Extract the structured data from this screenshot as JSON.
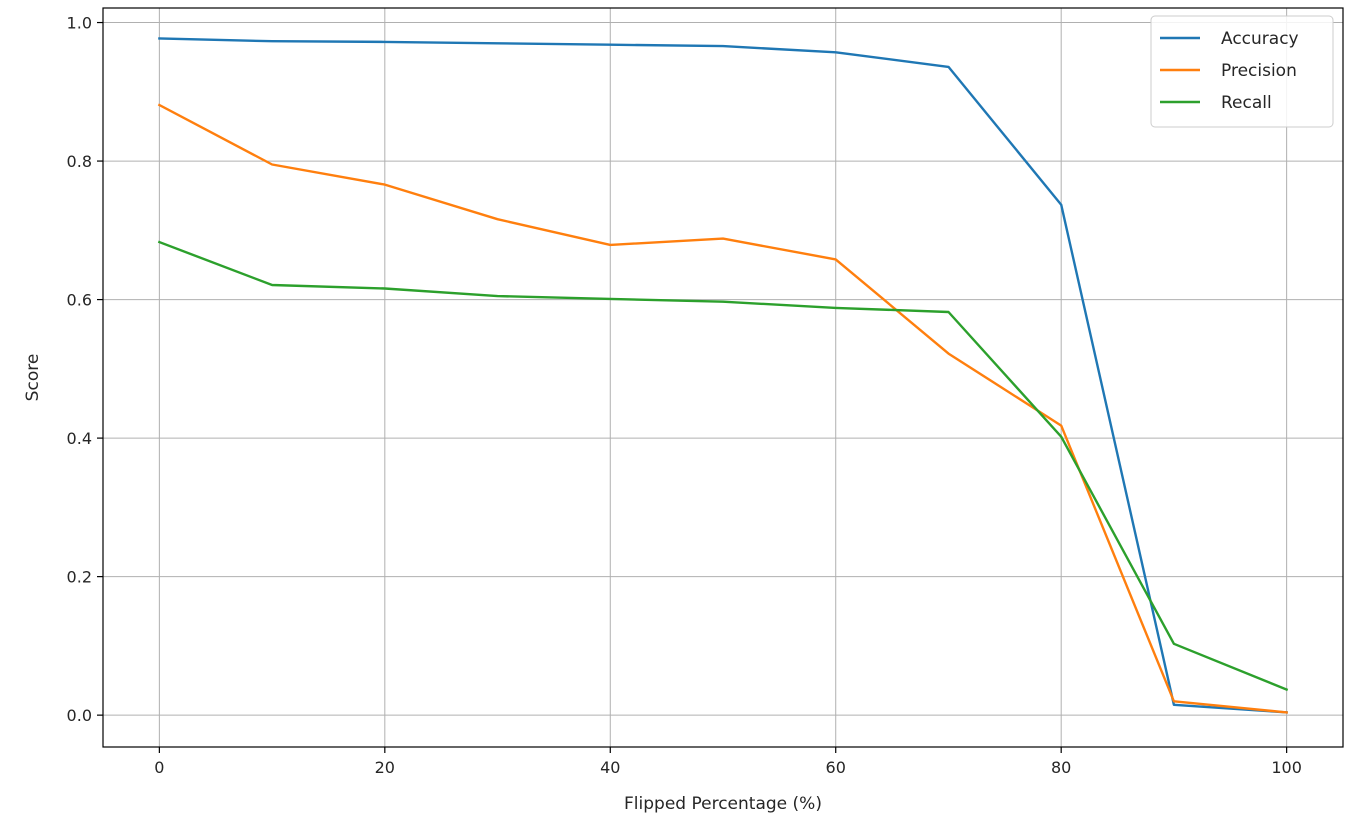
{
  "chart_data": {
    "type": "line",
    "title": "",
    "xlabel": "Flipped Percentage (%)",
    "ylabel": "Score",
    "x": [
      0,
      10,
      20,
      30,
      40,
      50,
      60,
      70,
      80,
      90,
      100
    ],
    "xlim": [
      -5,
      105
    ],
    "ylim": [
      -0.046,
      1.021
    ],
    "xticks": [
      0,
      20,
      40,
      60,
      80,
      100
    ],
    "xtick_labels": [
      "0",
      "20",
      "40",
      "60",
      "80",
      "100"
    ],
    "yticks": [
      0.0,
      0.2,
      0.4,
      0.6,
      0.8,
      1.0
    ],
    "ytick_labels": [
      "0.0",
      "0.2",
      "0.4",
      "0.6",
      "0.8",
      "1.0"
    ],
    "grid": true,
    "legend_position": "top-right",
    "series": [
      {
        "name": "Accuracy",
        "color": "#1f77b4",
        "values": [
          0.977,
          0.973,
          0.972,
          0.97,
          0.968,
          0.966,
          0.957,
          0.936,
          0.737,
          0.015,
          0.004
        ]
      },
      {
        "name": "Precision",
        "color": "#ff7f0e",
        "values": [
          0.881,
          0.795,
          0.766,
          0.716,
          0.679,
          0.688,
          0.658,
          0.522,
          0.418,
          0.02,
          0.004
        ]
      },
      {
        "name": "Recall",
        "color": "#2ca02c",
        "values": [
          0.683,
          0.621,
          0.616,
          0.605,
          0.601,
          0.597,
          0.588,
          0.582,
          0.402,
          0.103,
          0.037
        ]
      }
    ]
  }
}
